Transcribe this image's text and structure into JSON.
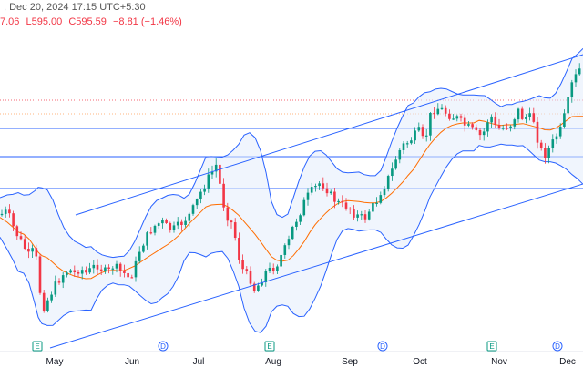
{
  "header": {
    "date_text": ", Dec 20, 2024 17:15 UTC+5:30",
    "ohlc_parts": [
      "7.06",
      "L595.00",
      "C595.59",
      "−8.81 (−1.46%)"
    ]
  },
  "colors": {
    "up": "#089981",
    "down": "#f23645",
    "band": "#2962ff",
    "basis": "#ff6d00",
    "trend": "#2962ff",
    "price_line": "#f23645",
    "fill": "#e3ecfb"
  },
  "chart_data": {
    "type": "candlestick",
    "x_ticks": [
      "May",
      "Jun",
      "Jul",
      "Aug",
      "Sep",
      "Oct",
      "Nov",
      "Dec"
    ],
    "event_markers": [
      {
        "label": "E",
        "month": "May"
      },
      {
        "label": "D",
        "month": "Jun"
      },
      {
        "label": "E",
        "month": "Aug"
      },
      {
        "label": "D",
        "month": "Sep"
      },
      {
        "label": "E",
        "month": "Nov"
      },
      {
        "label": "D",
        "month": "Dec"
      }
    ],
    "close_trend": [
      [
        0,
        236
      ],
      [
        8,
        232
      ],
      [
        14,
        248
      ],
      [
        20,
        260
      ],
      [
        26,
        270
      ],
      [
        32,
        282
      ],
      [
        38,
        272
      ],
      [
        42,
        300
      ],
      [
        46,
        340
      ],
      [
        52,
        330
      ],
      [
        58,
        318
      ],
      [
        64,
        308
      ],
      [
        70,
        300
      ],
      [
        76,
        296
      ],
      [
        82,
        300
      ],
      [
        88,
        294
      ],
      [
        94,
        300
      ],
      [
        100,
        296
      ],
      [
        106,
        290
      ],
      [
        112,
        296
      ],
      [
        118,
        300
      ],
      [
        124,
        292
      ],
      [
        130,
        296
      ],
      [
        136,
        300
      ],
      [
        142,
        306
      ],
      [
        148,
        294
      ],
      [
        154,
        272
      ],
      [
        160,
        262
      ],
      [
        166,
        252
      ],
      [
        172,
        246
      ],
      [
        178,
        244
      ],
      [
        184,
        250
      ],
      [
        190,
        252
      ],
      [
        196,
        248
      ],
      [
        202,
        242
      ],
      [
        208,
        236
      ],
      [
        214,
        226
      ],
      [
        220,
        212
      ],
      [
        226,
        200
      ],
      [
        232,
        190
      ],
      [
        238,
        180
      ],
      [
        244,
        220
      ],
      [
        250,
        238
      ],
      [
        256,
        248
      ],
      [
        262,
        282
      ],
      [
        268,
        300
      ],
      [
        274,
        304
      ],
      [
        280,
        320
      ],
      [
        286,
        308
      ],
      [
        292,
        298
      ],
      [
        298,
        296
      ],
      [
        304,
        290
      ],
      [
        310,
        278
      ],
      [
        316,
        268
      ],
      [
        322,
        248
      ],
      [
        328,
        236
      ],
      [
        334,
        222
      ],
      [
        340,
        212
      ],
      [
        346,
        206
      ],
      [
        352,
        200
      ],
      [
        358,
        206
      ],
      [
        364,
        216
      ],
      [
        370,
        222
      ],
      [
        376,
        226
      ],
      [
        382,
        226
      ],
      [
        388,
        234
      ],
      [
        394,
        238
      ],
      [
        400,
        240
      ],
      [
        406,
        230
      ],
      [
        412,
        224
      ],
      [
        418,
        210
      ],
      [
        424,
        200
      ],
      [
        430,
        188
      ],
      [
        436,
        170
      ],
      [
        442,
        160
      ],
      [
        448,
        156
      ],
      [
        454,
        150
      ],
      [
        460,
        144
      ],
      [
        466,
        158
      ],
      [
        472,
        128
      ],
      [
        478,
        118
      ],
      [
        484,
        120
      ],
      [
        490,
        124
      ],
      [
        496,
        128
      ],
      [
        502,
        130
      ],
      [
        508,
        136
      ],
      [
        514,
        140
      ],
      [
        520,
        144
      ],
      [
        526,
        150
      ],
      [
        532,
        144
      ],
      [
        538,
        124
      ],
      [
        544,
        140
      ],
      [
        550,
        142
      ],
      [
        556,
        138
      ],
      [
        562,
        136
      ],
      [
        568,
        120
      ],
      [
        574,
        130
      ],
      [
        580,
        128
      ],
      [
        586,
        132
      ],
      [
        592,
        162
      ],
      [
        598,
        170
      ],
      [
        604,
        162
      ],
      [
        610,
        150
      ],
      [
        616,
        142
      ],
      [
        622,
        118
      ],
      [
        628,
        92
      ],
      [
        634,
        80
      ],
      [
        640,
        70
      ]
    ]
  }
}
